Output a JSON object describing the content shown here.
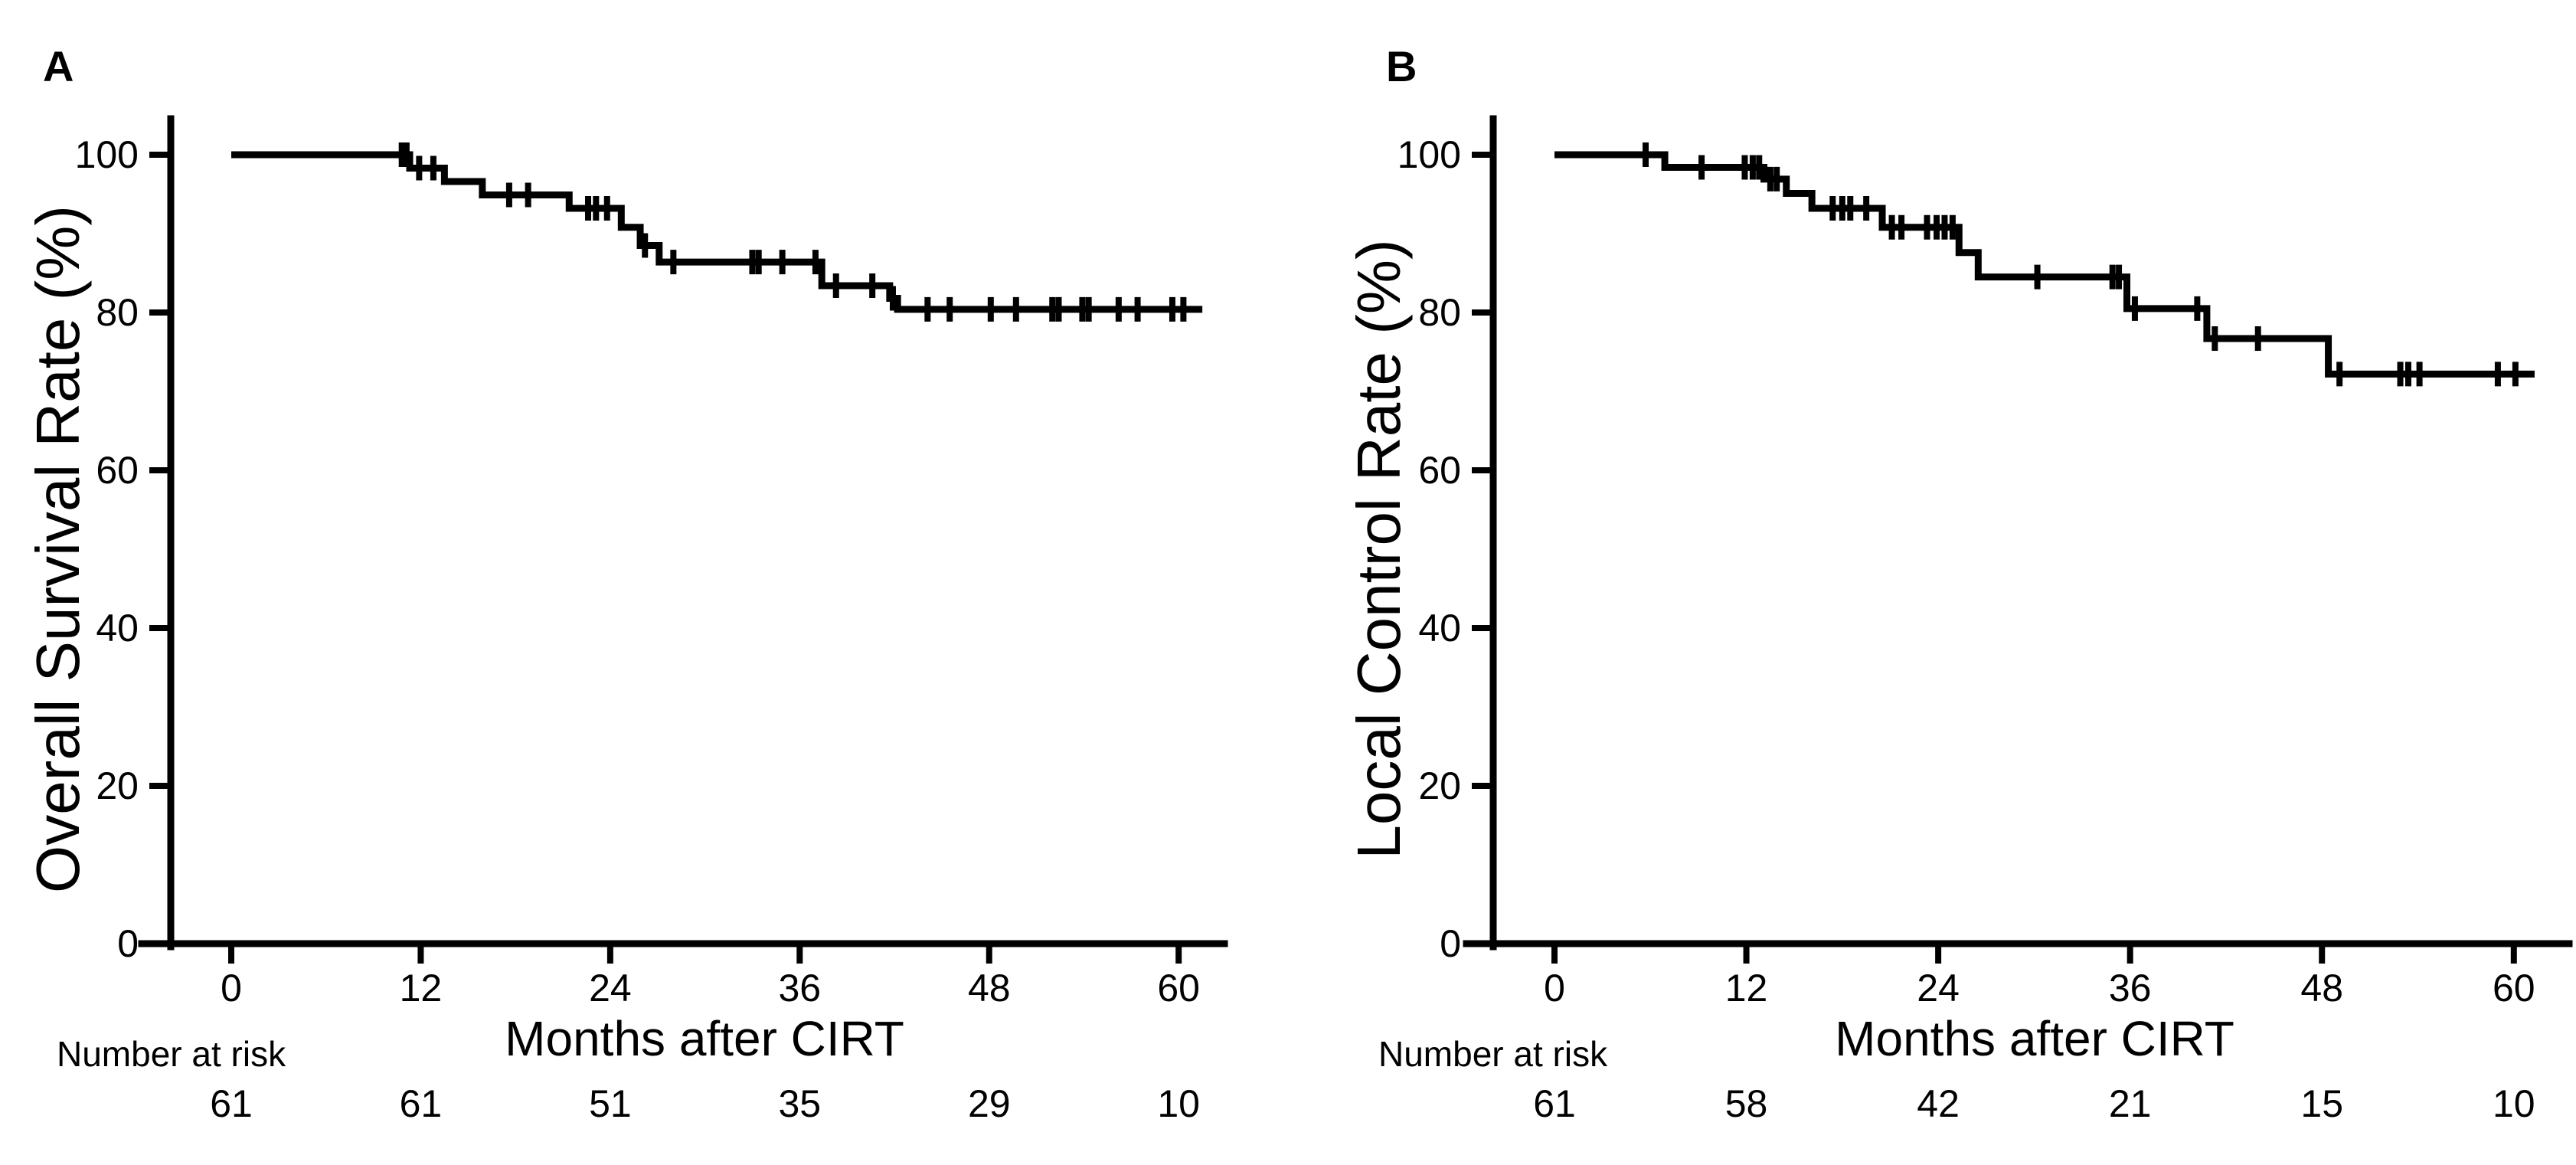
{
  "colors": {
    "ink": "#000000",
    "background": "#ffffff"
  },
  "chart_data": [
    {
      "type": "line",
      "subtype": "kaplan-meier",
      "panel_label": "A",
      "ylabel": "Overall Survival Rate (%)",
      "xlabel": "Months after CIRT",
      "risk_label": "Number at risk",
      "x_ticks": [
        0,
        12,
        24,
        36,
        48,
        60
      ],
      "y_ticks": [
        100,
        80,
        60,
        40,
        20,
        0
      ],
      "xlim": [
        0,
        63
      ],
      "ylim": [
        0,
        100
      ],
      "grid": false,
      "legend": "none",
      "number_at_risk": [
        61,
        61,
        51,
        35,
        29,
        10
      ],
      "km_curve": {
        "start_t": 0,
        "start_p": 100,
        "steps": [
          [
            11.3,
            98.3
          ],
          [
            13.5,
            96.6
          ],
          [
            15.9,
            94.9
          ],
          [
            21.4,
            93.2
          ],
          [
            24.7,
            90.8
          ],
          [
            25.9,
            88.5
          ],
          [
            27.1,
            86.4
          ],
          [
            37.4,
            83.4
          ],
          [
            41.7,
            81.8
          ],
          [
            42.2,
            80.4
          ]
        ],
        "end_t": 61.5
      },
      "censor_marks": [
        [
          10.8,
          100
        ],
        [
          11.1,
          100
        ],
        [
          11.9,
          98.3
        ],
        [
          12.8,
          98.3
        ],
        [
          17.6,
          94.9
        ],
        [
          18.8,
          94.9
        ],
        [
          22.6,
          93.2
        ],
        [
          23.1,
          93.2
        ],
        [
          23.8,
          93.2
        ],
        [
          26.2,
          88.5
        ],
        [
          28.0,
          86.4
        ],
        [
          33.0,
          86.4
        ],
        [
          33.4,
          86.4
        ],
        [
          34.9,
          86.4
        ],
        [
          37.0,
          86.4
        ],
        [
          38.3,
          83.4
        ],
        [
          40.6,
          83.4
        ],
        [
          41.9,
          81.8
        ],
        [
          44.1,
          80.4
        ],
        [
          45.5,
          80.4
        ],
        [
          48.1,
          80.4
        ],
        [
          49.7,
          80.4
        ],
        [
          52.0,
          80.4
        ],
        [
          52.4,
          80.4
        ],
        [
          53.9,
          80.4
        ],
        [
          54.3,
          80.4
        ],
        [
          56.2,
          80.4
        ],
        [
          57.4,
          80.4
        ],
        [
          59.6,
          80.4
        ],
        [
          60.3,
          80.4
        ]
      ]
    },
    {
      "type": "line",
      "subtype": "kaplan-meier",
      "panel_label": "B",
      "ylabel": "Local Control Rate (%)",
      "xlabel": "Months after CIRT",
      "risk_label": "Number at risk",
      "x_ticks": [
        0,
        12,
        24,
        36,
        48,
        60
      ],
      "y_ticks": [
        100,
        80,
        60,
        40,
        20,
        0
      ],
      "xlim": [
        0,
        63
      ],
      "ylim": [
        0,
        100
      ],
      "grid": false,
      "legend": "none",
      "number_at_risk": [
        61,
        58,
        42,
        21,
        15,
        10
      ],
      "km_curve": {
        "start_t": 0,
        "start_p": 100,
        "steps": [
          [
            6.9,
            98.4
          ],
          [
            13.1,
            96.9
          ],
          [
            14.5,
            95.1
          ],
          [
            16.1,
            93.2
          ],
          [
            20.5,
            90.8
          ],
          [
            25.3,
            87.6
          ],
          [
            26.5,
            84.5
          ],
          [
            35.8,
            80.5
          ],
          [
            40.8,
            76.7
          ],
          [
            48.4,
            72.2
          ]
        ],
        "end_t": 61.3
      },
      "censor_marks": [
        [
          5.7,
          100
        ],
        [
          9.2,
          98.4
        ],
        [
          11.9,
          98.4
        ],
        [
          12.4,
          98.4
        ],
        [
          12.8,
          98.4
        ],
        [
          13.5,
          96.9
        ],
        [
          13.9,
          96.9
        ],
        [
          17.4,
          93.2
        ],
        [
          18.0,
          93.2
        ],
        [
          18.5,
          93.2
        ],
        [
          19.5,
          93.2
        ],
        [
          21.1,
          90.8
        ],
        [
          21.7,
          90.8
        ],
        [
          23.3,
          90.8
        ],
        [
          23.9,
          90.8
        ],
        [
          24.4,
          90.8
        ],
        [
          24.9,
          90.8
        ],
        [
          30.2,
          84.5
        ],
        [
          34.9,
          84.5
        ],
        [
          35.3,
          84.5
        ],
        [
          36.3,
          80.5
        ],
        [
          40.2,
          80.5
        ],
        [
          41.3,
          76.7
        ],
        [
          44.0,
          76.7
        ],
        [
          49.1,
          72.2
        ],
        [
          52.9,
          72.2
        ],
        [
          53.4,
          72.2
        ],
        [
          54.1,
          72.2
        ],
        [
          59.0,
          72.2
        ],
        [
          60.1,
          72.2
        ]
      ]
    }
  ]
}
